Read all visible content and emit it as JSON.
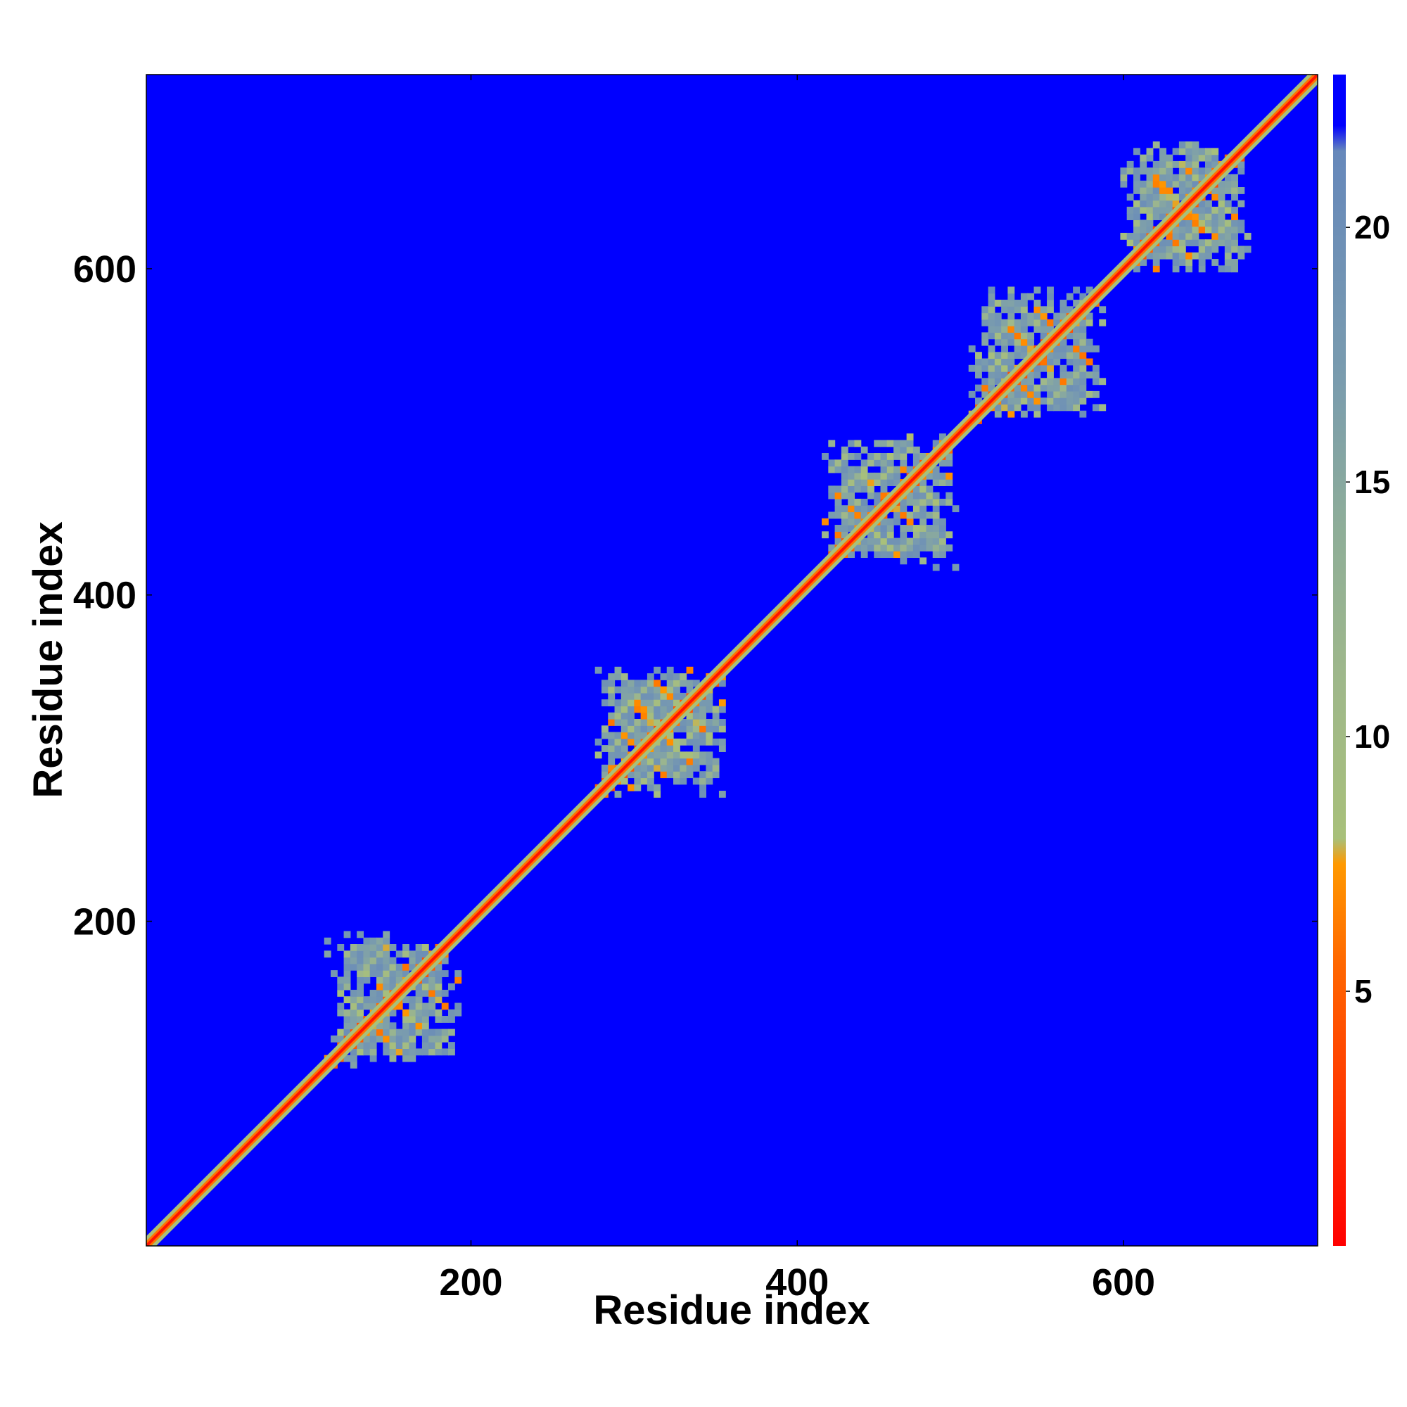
{
  "chart_data": {
    "type": "heatmap",
    "title": "",
    "xlabel": "Residue index",
    "ylabel": "Residue index",
    "xlim": [
      1,
      719
    ],
    "ylim": [
      1,
      719
    ],
    "xticks": [
      200,
      400,
      600
    ],
    "yticks": [
      200,
      400,
      600
    ],
    "grid": false,
    "background_value": 22,
    "background_color": "#0000ff",
    "diagonal": {
      "from": 1,
      "to": 719,
      "band_halfwidth": 3
    },
    "domains": [
      {
        "center": 150,
        "half_size": 38,
        "x_range": [
          110,
          192
        ],
        "y_range": [
          110,
          192
        ]
      },
      {
        "center": 315,
        "half_size": 38,
        "x_range": [
          268,
          353
        ],
        "y_range": [
          268,
          353
        ]
      },
      {
        "center": 455,
        "half_size": 38,
        "x_range": [
          415,
          497
        ],
        "y_range": [
          415,
          497
        ]
      },
      {
        "center": 545,
        "half_size": 38,
        "x_range": [
          505,
          588
        ],
        "y_range": [
          505,
          588
        ]
      },
      {
        "center": 635,
        "half_size": 38,
        "x_range": [
          590,
          682
        ],
        "y_range": [
          590,
          682
        ]
      }
    ],
    "colorbar": {
      "min": 0,
      "max": 23,
      "ticks": [
        5,
        10,
        15,
        20
      ],
      "stops": [
        {
          "value": 0,
          "color": "#ff0000"
        },
        {
          "value": 3,
          "color": "#ff3a00"
        },
        {
          "value": 5.5,
          "color": "#ff6600"
        },
        {
          "value": 7.5,
          "color": "#ff9900"
        },
        {
          "value": 8,
          "color": "#a8c07a"
        },
        {
          "value": 11,
          "color": "#9fb88a"
        },
        {
          "value": 14,
          "color": "#8fae98"
        },
        {
          "value": 17,
          "color": "#7a9cae"
        },
        {
          "value": 21.5,
          "color": "#6688bb"
        },
        {
          "value": 22,
          "color": "#0000ff"
        },
        {
          "value": 23,
          "color": "#0000ff"
        }
      ]
    }
  }
}
